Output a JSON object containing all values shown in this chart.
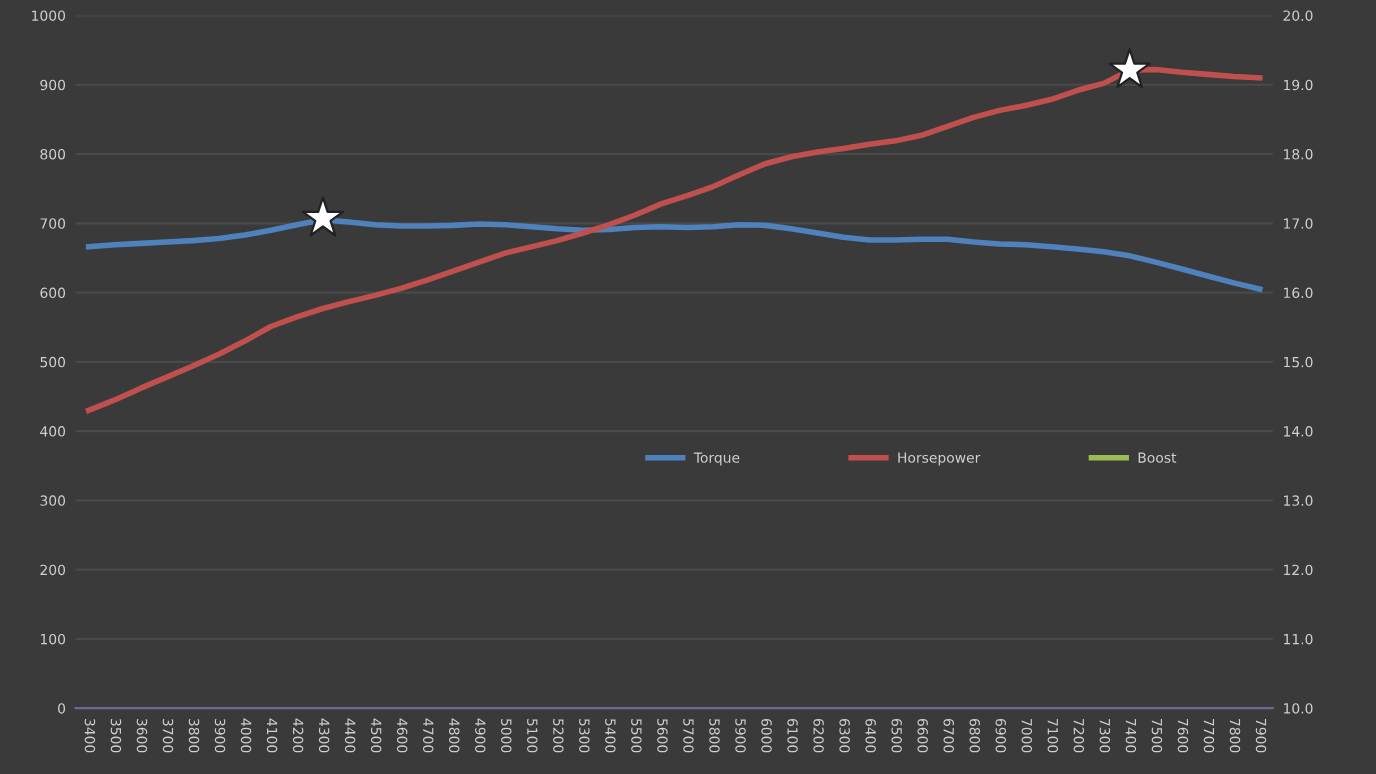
{
  "chart_data": {
    "type": "line",
    "categories": [
      "3400",
      "3500",
      "3600",
      "3700",
      "3800",
      "3900",
      "4000",
      "4100",
      "4200",
      "4300",
      "4400",
      "4500",
      "4600",
      "4700",
      "4800",
      "4900",
      "5000",
      "5100",
      "5200",
      "5300",
      "5400",
      "5500",
      "5600",
      "5700",
      "5800",
      "5900",
      "6000",
      "6100",
      "6200",
      "6300",
      "6400",
      "6500",
      "6600",
      "6700",
      "6800",
      "6900",
      "7000",
      "7100",
      "7200",
      "7300",
      "7400",
      "7500",
      "7600",
      "7700",
      "7800",
      "7900"
    ],
    "series": [
      {
        "name": "Torque",
        "color": "#4f81bd",
        "values": [
          666,
          669,
          671,
          673,
          675,
          678,
          683,
          690,
          698,
          705,
          702,
          698,
          696,
          696,
          697,
          699,
          698,
          695,
          692,
          690,
          691,
          694,
          695,
          694,
          695,
          698,
          697,
          692,
          686,
          680,
          676,
          676,
          677,
          677,
          673,
          670,
          669,
          666,
          663,
          659,
          653,
          644,
          634,
          624,
          614,
          605
        ]
      },
      {
        "name": "Horsepower",
        "color": "#c0504d",
        "values": [
          430,
          445,
          462,
          478,
          494,
          511,
          530,
          551,
          565,
          577,
          587,
          596,
          606,
          618,
          631,
          644,
          657,
          666,
          675,
          686,
          698,
          712,
          728,
          740,
          753,
          770,
          786,
          796,
          803,
          808,
          814,
          819,
          827,
          840,
          853,
          863,
          870,
          879,
          892,
          902,
          921,
          922,
          918,
          915,
          912,
          910
        ]
      },
      {
        "name": "Boost",
        "color": "#9bbb59",
        "values": [
          null,
          null,
          null,
          null,
          null,
          null,
          null,
          null,
          null,
          null,
          null,
          null,
          null,
          null,
          null,
          null,
          null,
          null,
          null,
          null,
          null,
          null,
          null,
          null,
          null,
          null,
          null,
          null,
          null,
          null,
          null,
          null,
          null,
          null,
          null,
          null,
          null,
          null,
          null,
          null,
          null,
          null,
          null,
          null,
          null,
          null
        ]
      },
      {
        "type": "scatter",
        "marker": "star",
        "color": "#ffffff",
        "values": [
          null,
          null,
          null,
          null,
          null,
          null,
          null,
          null,
          null,
          707,
          null,
          null,
          null,
          null,
          null,
          null,
          null,
          null,
          null,
          null,
          null,
          null,
          null,
          null,
          null,
          null,
          null,
          null,
          null,
          null,
          null,
          null,
          null,
          null,
          null,
          null,
          null,
          null,
          null,
          null,
          921,
          null,
          null,
          null,
          null,
          null
        ]
      }
    ],
    "ylim": [
      0,
      1000
    ],
    "yticks": [
      0,
      100,
      200,
      300,
      400,
      500,
      600,
      700,
      800,
      900,
      1000
    ],
    "y2lim": [
      10,
      20
    ],
    "y2ticks": [
      {
        "value": 10,
        "label": "10.0"
      },
      {
        "value": 11,
        "label": "11.0"
      },
      {
        "value": 12,
        "label": "12.0"
      },
      {
        "value": 13,
        "label": "13.0"
      },
      {
        "value": 14,
        "label": "14.0"
      },
      {
        "value": 15,
        "label": "15.0"
      },
      {
        "value": 16,
        "label": "16.0"
      },
      {
        "value": 17,
        "label": "17.0"
      },
      {
        "value": 18,
        "label": "18.0"
      },
      {
        "value": 19,
        "label": "19.0"
      },
      {
        "value": 20,
        "label": "20.0"
      }
    ],
    "grid": "y",
    "legend": "right",
    "marker": "none",
    "line_style": "solid"
  }
}
